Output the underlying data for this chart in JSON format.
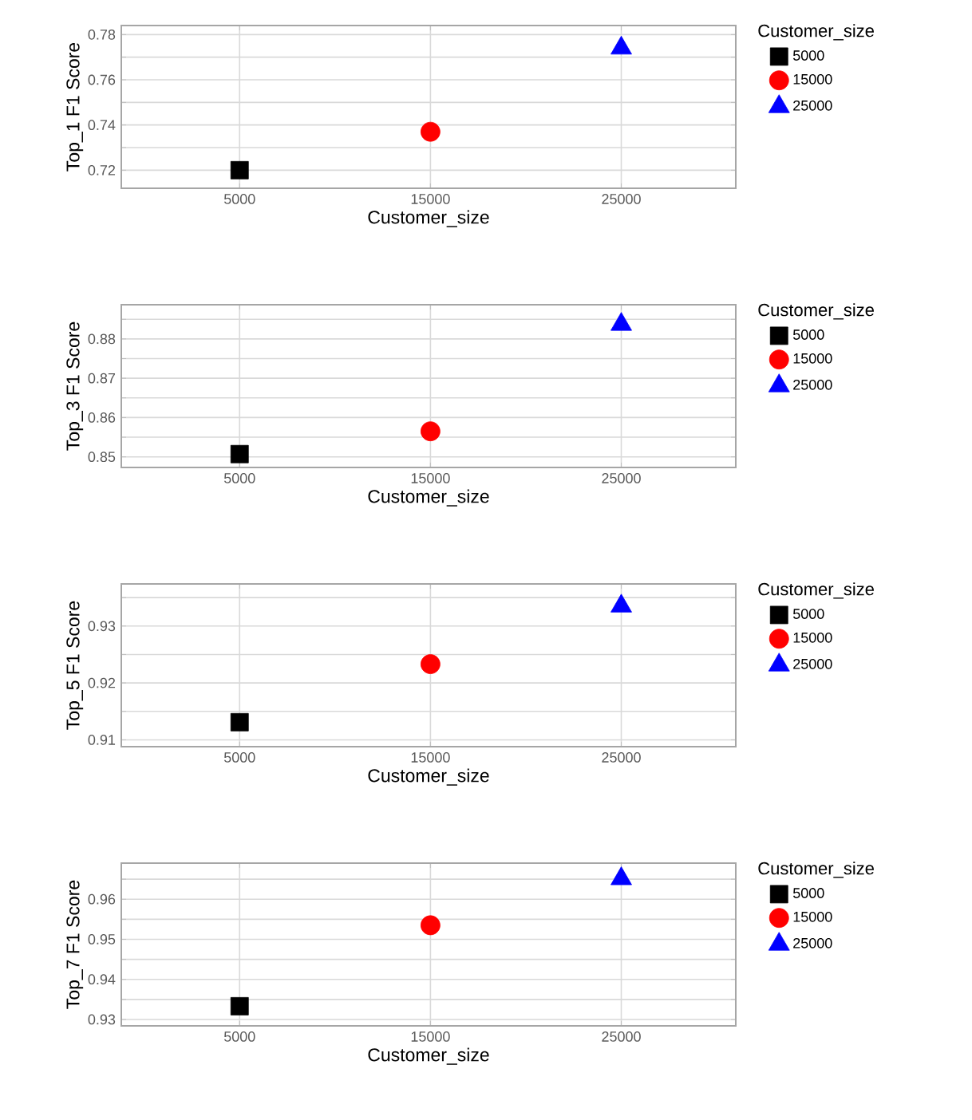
{
  "chart_data": [
    {
      "type": "scatter",
      "xlabel": "Customer_size",
      "ylabel": "Top_1 F1 Score",
      "legend_title": "Customer_size",
      "legend": "right",
      "grid": true,
      "xlim": [
        -1200,
        31000
      ],
      "xticks": [
        5000,
        15000,
        25000
      ],
      "ylim": [
        0.712,
        0.784
      ],
      "yticks": [
        0.72,
        {
          "value": 0.73,
          "label": null
        },
        0.74,
        {
          "value": 0.75,
          "label": null
        },
        0.76,
        {
          "value": 0.77,
          "label": null
        },
        0.78
      ],
      "series": [
        {
          "name": "5000",
          "color": "#000000",
          "marker": "square",
          "x": [
            5000
          ],
          "values": [
            0.72
          ]
        },
        {
          "name": "15000",
          "color": "#ff0000",
          "marker": "circle",
          "x": [
            15000
          ],
          "values": [
            0.737
          ]
        },
        {
          "name": "25000",
          "color": "#0000ff",
          "marker": "triangle",
          "x": [
            25000
          ],
          "values": [
            0.774
          ]
        }
      ]
    },
    {
      "type": "scatter",
      "xlabel": "Customer_size",
      "ylabel": "Top_3 F1 Score",
      "legend_title": "Customer_size",
      "legend": "right",
      "grid": true,
      "xlim": [
        -1200,
        31000
      ],
      "xticks": [
        5000,
        15000,
        25000
      ],
      "ylim": [
        0.8473,
        0.8887
      ],
      "yticks": [
        0.85,
        {
          "value": 0.855,
          "label": null
        },
        0.86,
        {
          "value": 0.865,
          "label": null
        },
        0.87,
        {
          "value": 0.875,
          "label": null
        },
        0.88,
        {
          "value": 0.885,
          "label": null
        }
      ],
      "series": [
        {
          "name": "5000",
          "color": "#000000",
          "marker": "square",
          "x": [
            5000
          ],
          "values": [
            0.8507
          ]
        },
        {
          "name": "15000",
          "color": "#ff0000",
          "marker": "circle",
          "x": [
            15000
          ],
          "values": [
            0.8565
          ]
        },
        {
          "name": "25000",
          "color": "#0000ff",
          "marker": "triangle",
          "x": [
            25000
          ],
          "values": [
            0.8837
          ]
        }
      ]
    },
    {
      "type": "scatter",
      "xlabel": "Customer_size",
      "ylabel": "Top_5 F1 Score",
      "legend_title": "Customer_size",
      "legend": "right",
      "grid": true,
      "xlim": [
        -1200,
        31000
      ],
      "xticks": [
        5000,
        15000,
        25000
      ],
      "ylim": [
        0.9088,
        0.9374
      ],
      "yticks": [
        0.91,
        {
          "value": 0.915,
          "label": null
        },
        0.92,
        {
          "value": 0.925,
          "label": null
        },
        0.93,
        {
          "value": 0.935,
          "label": null
        }
      ],
      "series": [
        {
          "name": "5000",
          "color": "#000000",
          "marker": "square",
          "x": [
            5000
          ],
          "values": [
            0.9131
          ]
        },
        {
          "name": "15000",
          "color": "#ff0000",
          "marker": "circle",
          "x": [
            15000
          ],
          "values": [
            0.9233
          ]
        },
        {
          "name": "25000",
          "color": "#0000ff",
          "marker": "triangle",
          "x": [
            25000
          ],
          "values": [
            0.9335
          ]
        }
      ]
    },
    {
      "type": "scatter",
      "xlabel": "Customer_size",
      "ylabel": "Top_7 F1 Score",
      "legend_title": "Customer_size",
      "legend": "right",
      "grid": true,
      "xlim": [
        -1200,
        31000
      ],
      "xticks": [
        5000,
        15000,
        25000
      ],
      "ylim": [
        0.9284,
        0.969
      ],
      "yticks": [
        0.93,
        {
          "value": 0.935,
          "label": null
        },
        0.94,
        {
          "value": 0.945,
          "label": null
        },
        0.95,
        {
          "value": 0.955,
          "label": null
        },
        0.96,
        {
          "value": 0.965,
          "label": null
        }
      ],
      "series": [
        {
          "name": "5000",
          "color": "#000000",
          "marker": "square",
          "x": [
            5000
          ],
          "values": [
            0.9333
          ]
        },
        {
          "name": "15000",
          "color": "#ff0000",
          "marker": "circle",
          "x": [
            15000
          ],
          "values": [
            0.9535
          ]
        },
        {
          "name": "25000",
          "color": "#0000ff",
          "marker": "triangle",
          "x": [
            25000
          ],
          "values": [
            0.9651
          ]
        }
      ]
    }
  ]
}
